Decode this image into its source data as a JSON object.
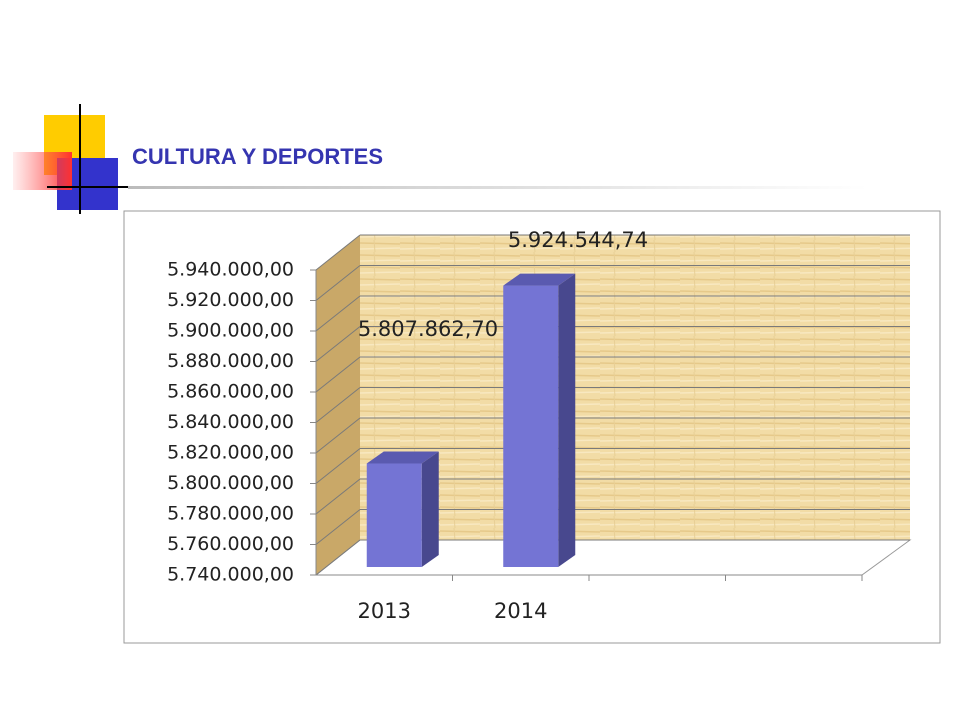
{
  "chart_data": {
    "type": "bar3d",
    "title": "CULTURA Y DEPORTES",
    "categories": [
      "2013",
      "2014",
      null,
      null
    ],
    "values": [
      5807862.7,
      5924544.74,
      null,
      null
    ],
    "value_labels": [
      "5.807.862,70",
      "5.924.544,74",
      null,
      null
    ],
    "color": "#7474d4",
    "ylim": [
      5740000,
      5940000
    ],
    "yticks": [
      {
        "value": 5740000,
        "label": "5.740.000,00"
      },
      {
        "value": 5760000,
        "label": "5.760.000,00"
      },
      {
        "value": 5780000,
        "label": "5.780.000,00"
      },
      {
        "value": 5800000,
        "label": "5.800.000,00"
      },
      {
        "value": 5820000,
        "label": "5.820.000,00"
      },
      {
        "value": 5840000,
        "label": "5.840.000,00"
      },
      {
        "value": 5860000,
        "label": "5.860.000,00"
      },
      {
        "value": 5880000,
        "label": "5.880.000,00"
      },
      {
        "value": 5900000,
        "label": "5.900.000,00"
      },
      {
        "value": 5920000,
        "label": "5.920.000,00"
      },
      {
        "value": 5940000,
        "label": "5.940.000,00"
      }
    ],
    "grid": true
  }
}
